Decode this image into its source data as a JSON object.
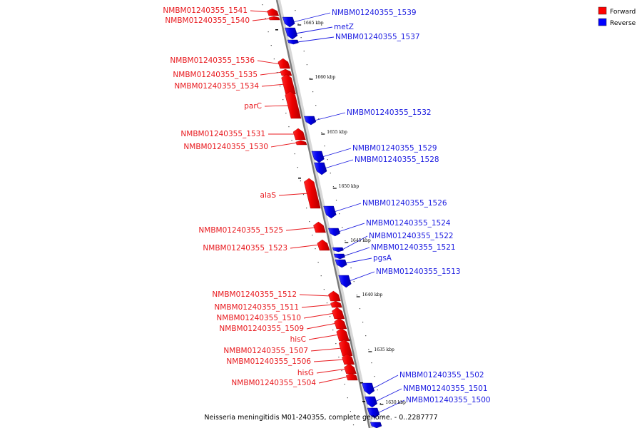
{
  "caption": "Neisseria meningitidis M01-240355, complete genome. - 0..2287777",
  "legend": [
    {
      "label": "Forward",
      "color": "#ff0000"
    },
    {
      "label": "Reverse",
      "color": "#0000ff"
    }
  ],
  "ticks": [
    "1665 kbp",
    "1660 kbp",
    "1655 kbp",
    "1650 kbp",
    "1645 kbp",
    "1640 kbp",
    "1635 kbp",
    "1630 kbp"
  ],
  "forward_labels": [
    "NMBM01240355_1541",
    "NMBM01240355_1540",
    "NMBM01240355_1536",
    "NMBM01240355_1535",
    "NMBM01240355_1534",
    "parC",
    "NMBM01240355_1531",
    "NMBM01240355_1530",
    "alaS",
    "NMBM01240355_1525",
    "NMBM01240355_1523",
    "NMBM01240355_1512",
    "NMBM01240355_1511",
    "NMBM01240355_1510",
    "NMBM01240355_1509",
    "hisC",
    "NMBM01240355_1507",
    "NMBM01240355_1506",
    "hisG",
    "NMBM01240355_1504"
  ],
  "reverse_labels": [
    "NMBM01240355_1539",
    "metZ",
    "NMBM01240355_1537",
    "NMBM01240355_1532",
    "NMBM01240355_1529",
    "NMBM01240355_1528",
    "NMBM01240355_1526",
    "NMBM01240355_1524",
    "NMBM01240355_1522",
    "NMBM01240355_1521",
    "pgsA",
    "NMBM01240355_1513",
    "NMBM01240355_1502",
    "NMBM01240355_1501",
    "NMBM01240355_1500"
  ]
}
